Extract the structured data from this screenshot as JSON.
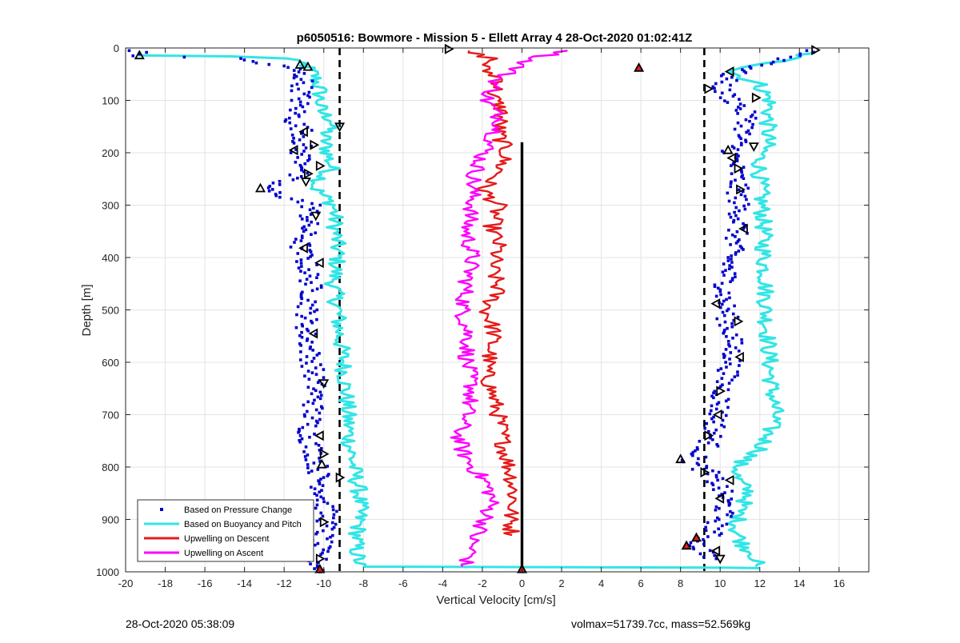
{
  "footer": {
    "timestamp": "28-Oct-2020 05:38:09",
    "summary": "volmax=51739.7cc, mass=52.569kg"
  },
  "colors": {
    "pressure": "#0000cc",
    "buoyancy": "#33e5e5",
    "descent": "#e61a1a",
    "ascent": "#ff00ff",
    "axis": "#222222",
    "grid": "#e3e3e3"
  },
  "chart_data": {
    "type": "scatter",
    "title": "p6050516: Bowmore - Mission 5 - Ellett Array 4 28-Oct-2020 01:02:41Z",
    "xlabel": "Vertical Velocity [cm/s]",
    "ylabel": "Depth [m]",
    "xlim": [
      -20,
      17.5
    ],
    "ylim": [
      0,
      1000
    ],
    "y_reversed": true,
    "grid": true,
    "legend_position": "bottom-left",
    "x_ticks": [
      -20,
      -18,
      -16,
      -14,
      -12,
      -10,
      -8,
      -6,
      -4,
      -2,
      0,
      2,
      4,
      6,
      8,
      10,
      12,
      14,
      16
    ],
    "y_ticks": [
      0,
      100,
      200,
      300,
      400,
      500,
      600,
      700,
      800,
      900,
      1000
    ],
    "reference_lines": [
      {
        "style": "dashed",
        "x": -9.2
      },
      {
        "style": "dashed",
        "x": 9.2
      },
      {
        "style": "solid",
        "x": 0,
        "y_range": [
          180,
          1000
        ]
      }
    ],
    "series": [
      {
        "name": "Based on Pressure Change",
        "style": "points",
        "color": "#0000cc",
        "downcast": [
          [
            -19.5,
            5
          ],
          [
            -19.3,
            15
          ],
          [
            -14.5,
            20
          ],
          [
            -11.5,
            40
          ],
          [
            -11,
            60
          ],
          [
            -11.2,
            100
          ],
          [
            -11.5,
            140
          ],
          [
            -11.0,
            160
          ],
          [
            -11.2,
            200
          ],
          [
            -10.8,
            230
          ],
          [
            -13.0,
            270
          ],
          [
            -10.6,
            300
          ],
          [
            -10.9,
            350
          ],
          [
            -11.2,
            380
          ],
          [
            -10.8,
            420
          ],
          [
            -10.6,
            460
          ],
          [
            -10.8,
            500
          ],
          [
            -10.9,
            540
          ],
          [
            -10.7,
            580
          ],
          [
            -10.5,
            620
          ],
          [
            -10.4,
            660
          ],
          [
            -10.6,
            700
          ],
          [
            -10.8,
            740
          ],
          [
            -10.4,
            780
          ],
          [
            -10.2,
            820
          ],
          [
            -10.0,
            860
          ],
          [
            -9.8,
            900
          ],
          [
            -10.1,
            940
          ],
          [
            -10.4,
            970
          ],
          [
            -10.2,
            1000
          ]
        ],
        "upcast": [
          [
            14.8,
            5
          ],
          [
            12.5,
            30
          ],
          [
            10.5,
            50
          ],
          [
            10.0,
            80
          ],
          [
            11.0,
            110
          ],
          [
            11.5,
            140
          ],
          [
            11.0,
            170
          ],
          [
            10.6,
            200
          ],
          [
            10.8,
            240
          ],
          [
            10.9,
            280
          ],
          [
            11.0,
            320
          ],
          [
            10.8,
            360
          ],
          [
            10.5,
            400
          ],
          [
            10.3,
            440
          ],
          [
            10.2,
            480
          ],
          [
            10.4,
            520
          ],
          [
            10.6,
            560
          ],
          [
            10.6,
            600
          ],
          [
            10.2,
            640
          ],
          [
            10.0,
            680
          ],
          [
            9.8,
            720
          ],
          [
            9.4,
            760
          ],
          [
            8.5,
            790
          ],
          [
            9.4,
            810
          ],
          [
            10.0,
            840
          ],
          [
            10.3,
            870
          ],
          [
            10.0,
            900
          ],
          [
            9.5,
            930
          ],
          [
            8.8,
            950
          ],
          [
            9.8,
            975
          ]
        ]
      },
      {
        "name": "Based on Buoyancy and Pitch",
        "style": "line",
        "color": "#33e5e5",
        "downcast": [
          [
            -19.5,
            14
          ],
          [
            -14.5,
            16
          ],
          [
            -12.0,
            20
          ],
          [
            -11.0,
            30
          ],
          [
            -10.5,
            50
          ],
          [
            -10.2,
            80
          ],
          [
            -10.2,
            100
          ],
          [
            -10.2,
            120
          ],
          [
            -9.5,
            140
          ],
          [
            -10.0,
            170
          ],
          [
            -9.8,
            200
          ],
          [
            -9.6,
            230
          ],
          [
            -10.5,
            265
          ],
          [
            -9.5,
            300
          ],
          [
            -9.4,
            350
          ],
          [
            -9.3,
            400
          ],
          [
            -9.5,
            450
          ],
          [
            -9.3,
            500
          ],
          [
            -9.2,
            550
          ],
          [
            -9.0,
            600
          ],
          [
            -8.9,
            650
          ],
          [
            -8.8,
            700
          ],
          [
            -8.7,
            750
          ],
          [
            -8.5,
            800
          ],
          [
            -8.2,
            850
          ],
          [
            -8.2,
            900
          ],
          [
            -8.4,
            950
          ],
          [
            -8.2,
            990
          ],
          [
            10.0,
            992
          ],
          [
            12.0,
            993
          ]
        ],
        "upcast": [
          [
            14.5,
            10
          ],
          [
            13.0,
            25
          ],
          [
            10.5,
            45
          ],
          [
            12.0,
            70
          ],
          [
            12.5,
            100
          ],
          [
            12.4,
            140
          ],
          [
            12.4,
            180
          ],
          [
            12.0,
            210
          ],
          [
            12.0,
            250
          ],
          [
            12.1,
            300
          ],
          [
            12.2,
            350
          ],
          [
            12.2,
            400
          ],
          [
            12.3,
            450
          ],
          [
            12.3,
            500
          ],
          [
            12.4,
            550
          ],
          [
            12.5,
            600
          ],
          [
            12.6,
            650
          ],
          [
            12.8,
            700
          ],
          [
            12.4,
            740
          ],
          [
            12.0,
            770
          ],
          [
            11.0,
            790
          ],
          [
            10.8,
            820
          ],
          [
            11.5,
            850
          ],
          [
            11.0,
            880
          ],
          [
            10.8,
            920
          ],
          [
            11.2,
            950
          ],
          [
            11.8,
            970
          ],
          [
            11.8,
            990
          ]
        ]
      },
      {
        "name": "Upwelling on Descent",
        "style": "line",
        "color": "#e61a1a",
        "points": [
          [
            -3.0,
            5
          ],
          [
            -1.5,
            20
          ],
          [
            -2.0,
            40
          ],
          [
            -1.0,
            60
          ],
          [
            -1.5,
            90
          ],
          [
            -1.0,
            120
          ],
          [
            -1.2,
            160
          ],
          [
            -0.8,
            200
          ],
          [
            -1.2,
            240
          ],
          [
            -2.0,
            270
          ],
          [
            -1.2,
            300
          ],
          [
            -1.5,
            340
          ],
          [
            -1.2,
            380
          ],
          [
            -1.5,
            420
          ],
          [
            -1.2,
            460
          ],
          [
            -1.8,
            500
          ],
          [
            -1.4,
            540
          ],
          [
            -1.6,
            580
          ],
          [
            -1.8,
            620
          ],
          [
            -1.5,
            660
          ],
          [
            -1.2,
            700
          ],
          [
            -1.0,
            740
          ],
          [
            -0.8,
            780
          ],
          [
            -0.5,
            820
          ],
          [
            -0.4,
            860
          ],
          [
            -0.6,
            900
          ],
          [
            -0.5,
            930
          ]
        ]
      },
      {
        "name": "Upwelling on Ascent",
        "style": "line",
        "color": "#ff00ff",
        "points": [
          [
            2.5,
            5
          ],
          [
            0.5,
            20
          ],
          [
            -1.2,
            60
          ],
          [
            -1.8,
            100
          ],
          [
            -1.0,
            140
          ],
          [
            -1.6,
            180
          ],
          [
            -2.2,
            220
          ],
          [
            -2.5,
            260
          ],
          [
            -2.5,
            300
          ],
          [
            -2.8,
            350
          ],
          [
            -2.5,
            400
          ],
          [
            -2.8,
            450
          ],
          [
            -3.0,
            500
          ],
          [
            -2.7,
            550
          ],
          [
            -2.8,
            600
          ],
          [
            -2.5,
            650
          ],
          [
            -2.8,
            700
          ],
          [
            -3.2,
            740
          ],
          [
            -3.0,
            770
          ],
          [
            -2.5,
            800
          ],
          [
            -1.8,
            830
          ],
          [
            -1.5,
            860
          ],
          [
            -1.8,
            900
          ],
          [
            -2.5,
            940
          ],
          [
            -2.6,
            970
          ],
          [
            -3.0,
            990
          ]
        ]
      }
    ],
    "markers": [
      {
        "shape": "triangle-up",
        "x": -19.3,
        "y": 14
      },
      {
        "shape": "triangle-up",
        "x": -11.2,
        "y": 32
      },
      {
        "shape": "triangle-up",
        "x": -10.8,
        "y": 36
      },
      {
        "shape": "triangle-down",
        "x": -9.2,
        "y": 150
      },
      {
        "shape": "triangle-left",
        "x": -11.0,
        "y": 160
      },
      {
        "shape": "triangle-left",
        "x": -11.5,
        "y": 195
      },
      {
        "shape": "triangle-right",
        "x": -10.5,
        "y": 185
      },
      {
        "shape": "triangle-right",
        "x": -10.2,
        "y": 225
      },
      {
        "shape": "triangle-right",
        "x": -10.8,
        "y": 240
      },
      {
        "shape": "triangle-down",
        "x": -10.9,
        "y": 255
      },
      {
        "shape": "triangle-up",
        "x": -13.2,
        "y": 268
      },
      {
        "shape": "triangle-down",
        "x": -10.4,
        "y": 320
      },
      {
        "shape": "triangle-left",
        "x": -11.0,
        "y": 382
      },
      {
        "shape": "triangle-left",
        "x": -10.2,
        "y": 410
      },
      {
        "shape": "triangle-left",
        "x": -10.5,
        "y": 545
      },
      {
        "shape": "triangle-down",
        "x": -10.0,
        "y": 640
      },
      {
        "shape": "triangle-left",
        "x": -10.2,
        "y": 740
      },
      {
        "shape": "triangle-right",
        "x": -10.0,
        "y": 775
      },
      {
        "shape": "triangle-up",
        "x": -10.1,
        "y": 795
      },
      {
        "shape": "triangle-right",
        "x": -9.2,
        "y": 820
      },
      {
        "shape": "triangle-right",
        "x": -10.0,
        "y": 905
      },
      {
        "shape": "triangle-right",
        "x": -10.2,
        "y": 975
      },
      {
        "shape": "triangle-right",
        "x": -3.7,
        "y": 2
      },
      {
        "shape": "triangle-right",
        "x": 14.8,
        "y": 4
      },
      {
        "shape": "triangle-left",
        "x": 10.5,
        "y": 45
      },
      {
        "shape": "triangle-right",
        "x": 9.4,
        "y": 78
      },
      {
        "shape": "triangle-right",
        "x": 11.8,
        "y": 95
      },
      {
        "shape": "triangle-down",
        "x": 11.7,
        "y": 188
      },
      {
        "shape": "triangle-up",
        "x": 10.4,
        "y": 195
      },
      {
        "shape": "triangle-left",
        "x": 10.6,
        "y": 210
      },
      {
        "shape": "triangle-right",
        "x": 10.9,
        "y": 230
      },
      {
        "shape": "triangle-right",
        "x": 11.0,
        "y": 270
      },
      {
        "shape": "triangle-left",
        "x": 11.2,
        "y": 345
      },
      {
        "shape": "triangle-left",
        "x": 9.8,
        "y": 488
      },
      {
        "shape": "triangle-right",
        "x": 10.9,
        "y": 522
      },
      {
        "shape": "triangle-left",
        "x": 11.0,
        "y": 590
      },
      {
        "shape": "triangle-right",
        "x": 10.0,
        "y": 655
      },
      {
        "shape": "triangle-left",
        "x": 9.9,
        "y": 700
      },
      {
        "shape": "triangle-right",
        "x": 9.4,
        "y": 740
      },
      {
        "shape": "triangle-up",
        "x": 8.0,
        "y": 785
      },
      {
        "shape": "triangle-right",
        "x": 9.2,
        "y": 810
      },
      {
        "shape": "triangle-left",
        "x": 10.5,
        "y": 825
      },
      {
        "shape": "triangle-left",
        "x": 10.0,
        "y": 860
      },
      {
        "shape": "triangle-left",
        "x": 9.8,
        "y": 960
      },
      {
        "shape": "triangle-down",
        "x": 10.0,
        "y": 975
      },
      {
        "shape": "triangle-up",
        "x": -10.2,
        "y": 995,
        "fill": "descent"
      },
      {
        "shape": "triangle-up",
        "x": 0,
        "y": 995,
        "fill": "descent"
      },
      {
        "shape": "triangle-up",
        "x": 5.9,
        "y": 38,
        "fill": "descent"
      },
      {
        "shape": "triangle-up",
        "x": 8.3,
        "y": 950,
        "fill": "descent"
      },
      {
        "shape": "triangle-up",
        "x": 8.8,
        "y": 935,
        "fill": "descent"
      }
    ]
  }
}
